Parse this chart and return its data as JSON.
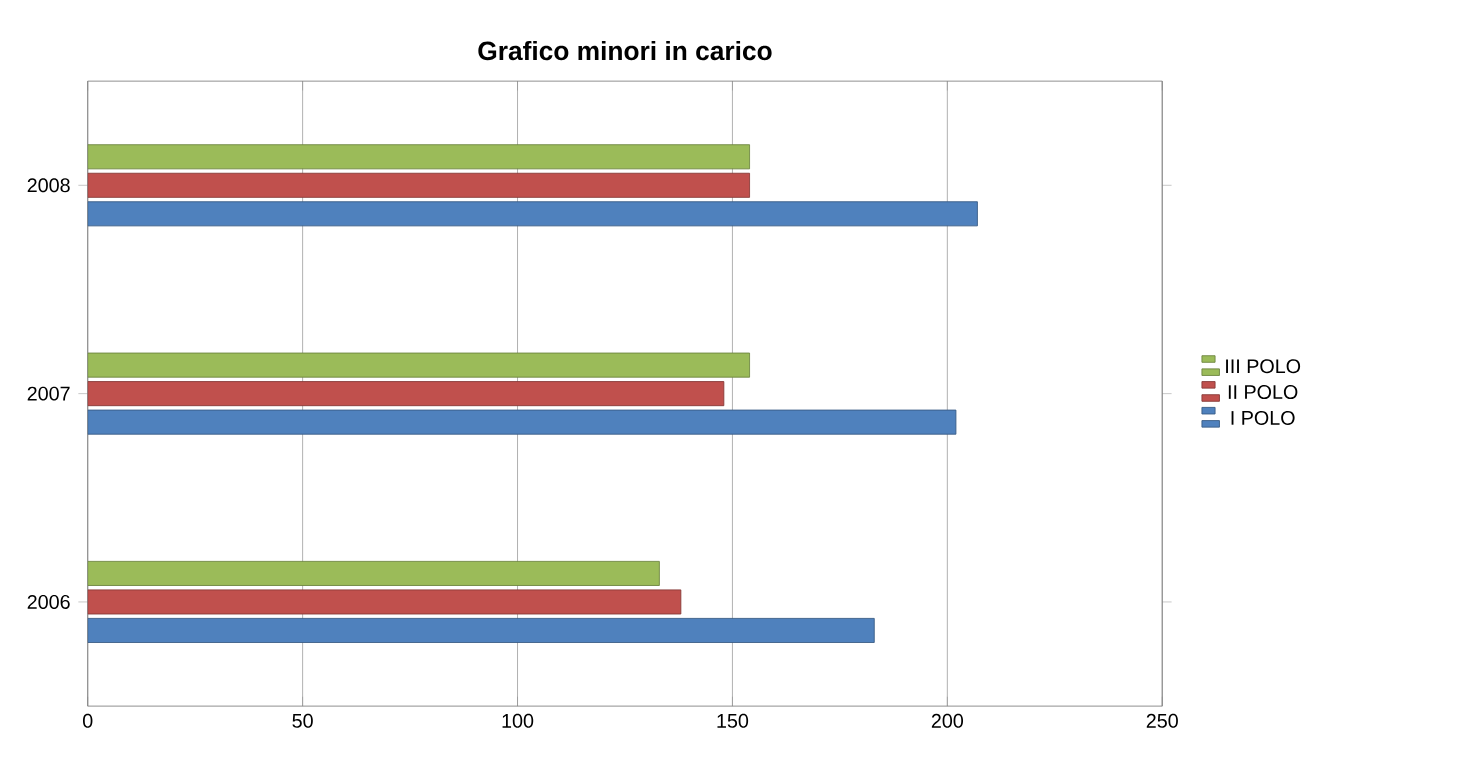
{
  "chart_data": {
    "type": "bar",
    "orientation": "horizontal",
    "title": "Grafico minori in carico",
    "categories": [
      "2008",
      "2007",
      "2006"
    ],
    "series": [
      {
        "name": "I POLO",
        "color": "#4f81bd",
        "values": [
          207,
          202,
          183
        ]
      },
      {
        "name": "II POLO",
        "color": "#c0504d",
        "values": [
          154,
          148,
          138
        ]
      },
      {
        "name": "III POLO",
        "color": "#9bbb59",
        "values": [
          154,
          154,
          133
        ]
      }
    ],
    "xlim": [
      0,
      250
    ],
    "xticks": [
      0,
      50,
      100,
      150,
      200,
      250
    ],
    "grid": "x",
    "legend": "right"
  }
}
